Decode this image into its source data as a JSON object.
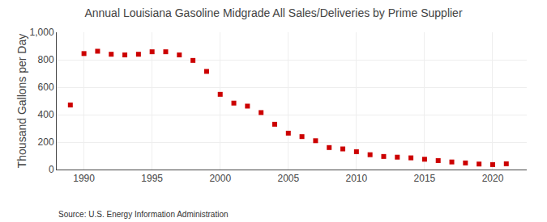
{
  "chart_data": {
    "type": "scatter",
    "title": "Annual Louisiana Gasoline Midgrade All Sales/Deliveries by Prime Supplier",
    "ylabel": "Thousand Gallons per Day",
    "annotations": [
      "Source: U.S. Energy Information Administration"
    ],
    "x": [
      1989,
      1990,
      1991,
      1992,
      1993,
      1994,
      1995,
      1996,
      1997,
      1998,
      1999,
      2000,
      2001,
      2002,
      2003,
      2004,
      2005,
      2006,
      2007,
      2008,
      2009,
      2010,
      2011,
      2012,
      2013,
      2014,
      2015,
      2016,
      2017,
      2018,
      2019,
      2020,
      2021
    ],
    "values": [
      470,
      845,
      862,
      840,
      835,
      840,
      858,
      858,
      835,
      795,
      715,
      548,
      484,
      462,
      415,
      330,
      265,
      240,
      210,
      160,
      150,
      130,
      108,
      95,
      90,
      85,
      75,
      65,
      55,
      48,
      40,
      36,
      42
    ],
    "color": "#cc0000",
    "marker": "square",
    "xlim": [
      1988,
      2022.5
    ],
    "xticks": [
      1990,
      1995,
      2000,
      2005,
      2010,
      2015,
      2020
    ],
    "ylim": [
      0,
      1000
    ],
    "yticks": [
      0,
      200,
      400,
      600,
      800,
      {
        "value": 1000,
        "label": "1,000"
      }
    ],
    "grid": true
  }
}
